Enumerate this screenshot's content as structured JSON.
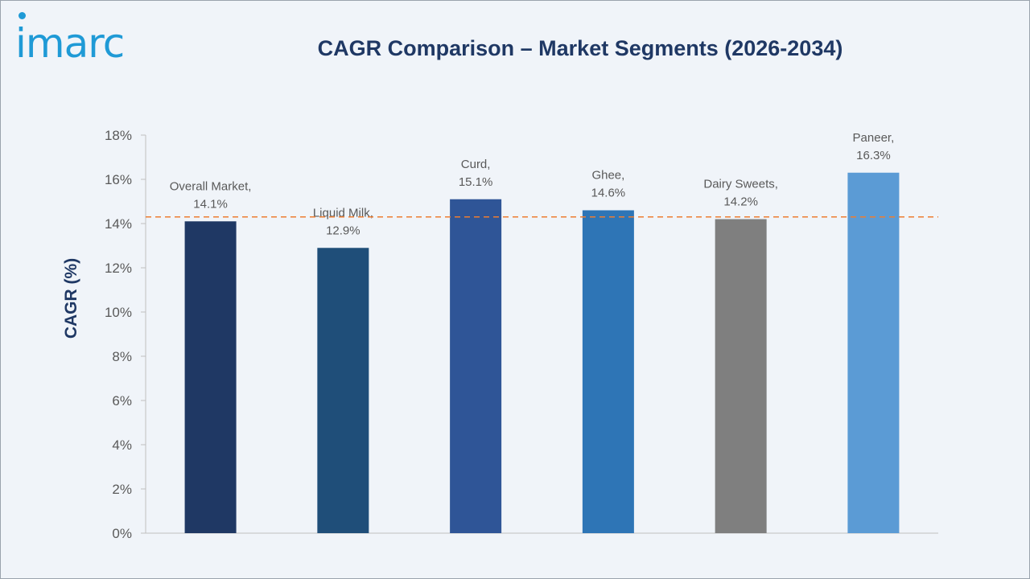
{
  "brand": {
    "logo_text": "imarc",
    "color": "#1f9ad6"
  },
  "chart_data": {
    "type": "bar",
    "title": "CAGR Comparison – Market Segments (2026-2034)",
    "xlabel": "",
    "ylabel": "CAGR (%)",
    "ylim": [
      0,
      18
    ],
    "yticks": [
      0,
      2,
      4,
      6,
      8,
      10,
      12,
      14,
      16,
      18
    ],
    "ytick_labels": [
      "0%",
      "2%",
      "4%",
      "6%",
      "8%",
      "10%",
      "12%",
      "14%",
      "16%",
      "18%"
    ],
    "grid": false,
    "legend": "none",
    "categories": [
      "Overall Market",
      "Liquid Milk",
      "Curd",
      "Ghee",
      "Dairy Sweets",
      "Paneer"
    ],
    "values": [
      14.1,
      12.9,
      15.1,
      14.6,
      14.2,
      16.3
    ],
    "data_labels": [
      [
        "Overall Market,",
        "14.1%"
      ],
      [
        "Liquid Milk,",
        "12.9%"
      ],
      [
        "Curd,",
        "15.1%"
      ],
      [
        "Ghee,",
        "14.6%"
      ],
      [
        "Dairy Sweets,",
        "14.2%"
      ],
      [
        "Paneer,",
        "16.3%"
      ]
    ],
    "colors": [
      "#1f3864",
      "#1f4e79",
      "#2f5597",
      "#2e75b6",
      "#7f7f7f",
      "#5b9bd5"
    ],
    "reference_line": {
      "value": 14.3,
      "color": "#ed7d31",
      "style": "dashed"
    }
  }
}
